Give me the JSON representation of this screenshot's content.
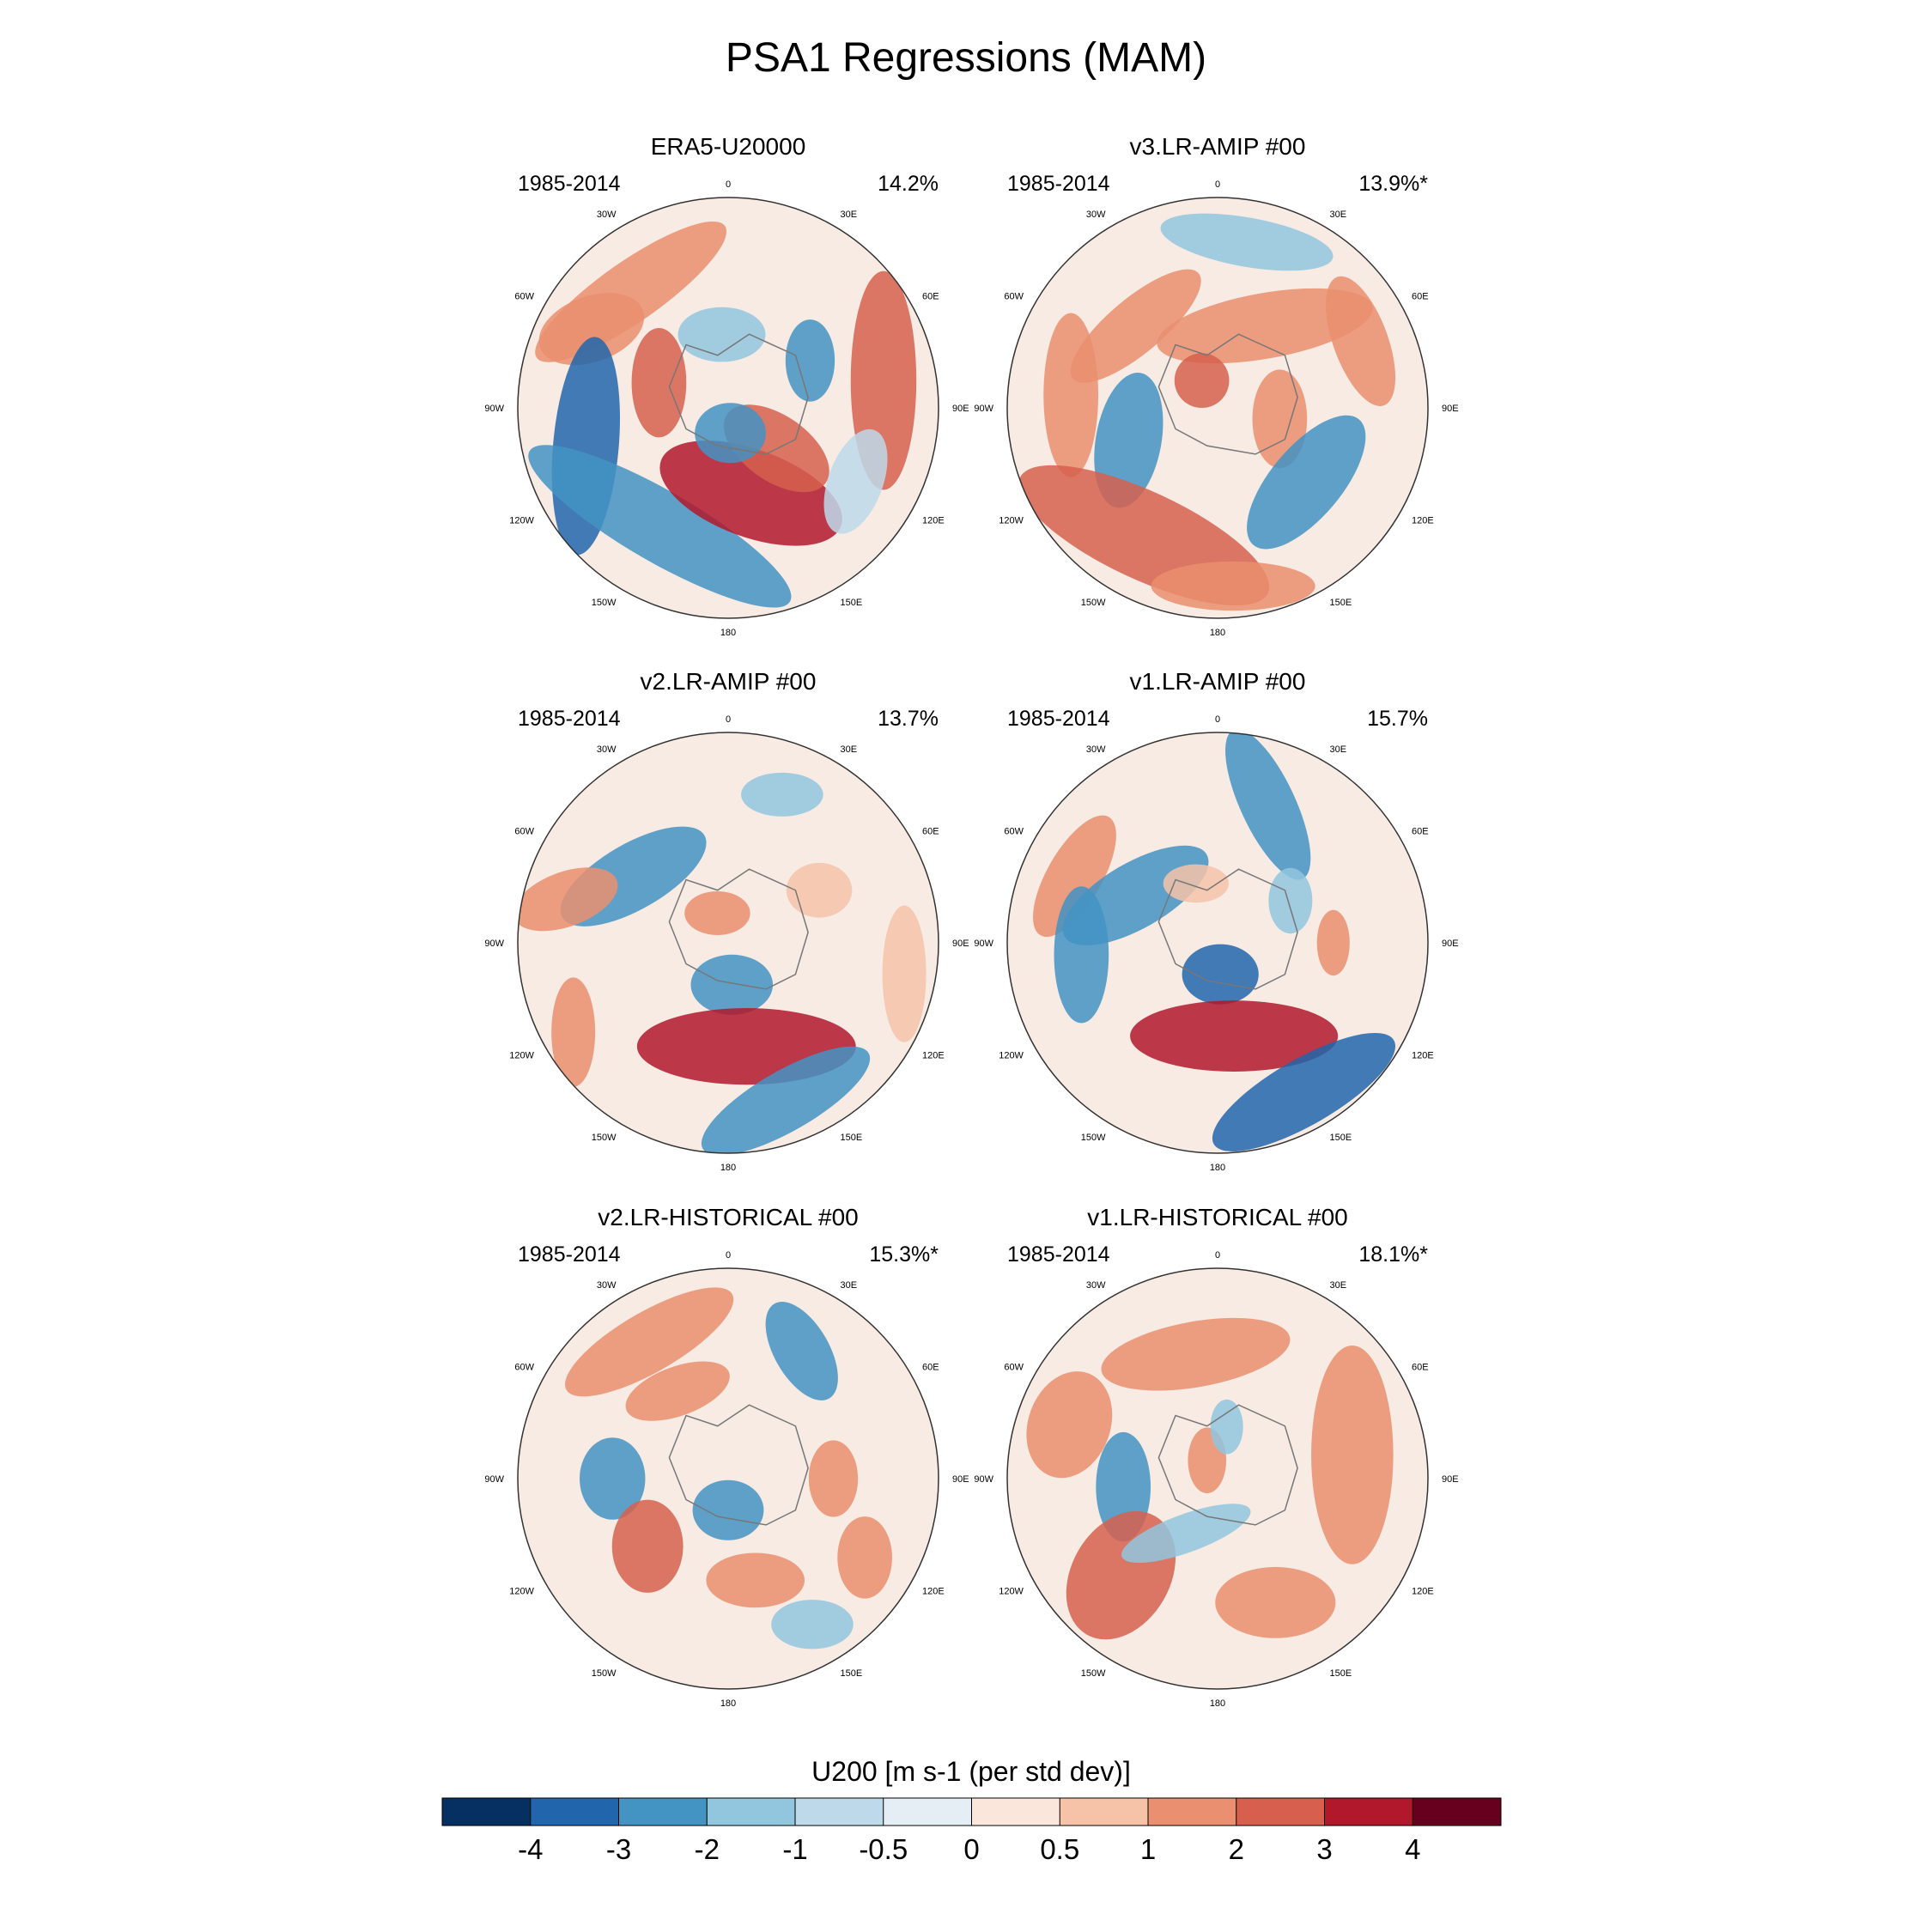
{
  "title": "PSA1 Regressions (MAM)",
  "chart_data": {
    "type": "heatmap",
    "projection": "south-polar-stereographic",
    "panels": [
      {
        "title": "ERA5-U20000",
        "period": "1985-2014",
        "variance": "14.2%"
      },
      {
        "title": "v3.LR-AMIP  #00",
        "period": "1985-2014",
        "variance": "13.9%*"
      },
      {
        "title": "v2.LR-AMIP  #00",
        "period": "1985-2014",
        "variance": "13.7%"
      },
      {
        "title": "v1.LR-AMIP  #00",
        "period": "1985-2014",
        "variance": "15.7%"
      },
      {
        "title": "v2.LR-HISTORICAL  #00",
        "period": "1985-2014",
        "variance": "15.3%*"
      },
      {
        "title": "v1.LR-HISTORICAL  #00",
        "period": "1985-2014",
        "variance": "18.1%*"
      }
    ],
    "longitude_labels": [
      "0",
      "30E",
      "60E",
      "90E",
      "120E",
      "150E",
      "180",
      "150W",
      "120W",
      "90W",
      "60W",
      "30W"
    ],
    "colorbar": {
      "label": "U200 [m s-1 (per std dev)]",
      "levels": [
        "-4",
        "-3",
        "-2",
        "-1",
        "-0.5",
        "0",
        "0.5",
        "1",
        "2",
        "3",
        "4"
      ],
      "colors": [
        "#053061",
        "#2166ac",
        "#4393c3",
        "#92c5de",
        "#bdd9ea",
        "#e6eef5",
        "#fbe6dc",
        "#f6c3a9",
        "#ea8f6f",
        "#d6604d",
        "#b2182b",
        "#67001f"
      ]
    }
  }
}
